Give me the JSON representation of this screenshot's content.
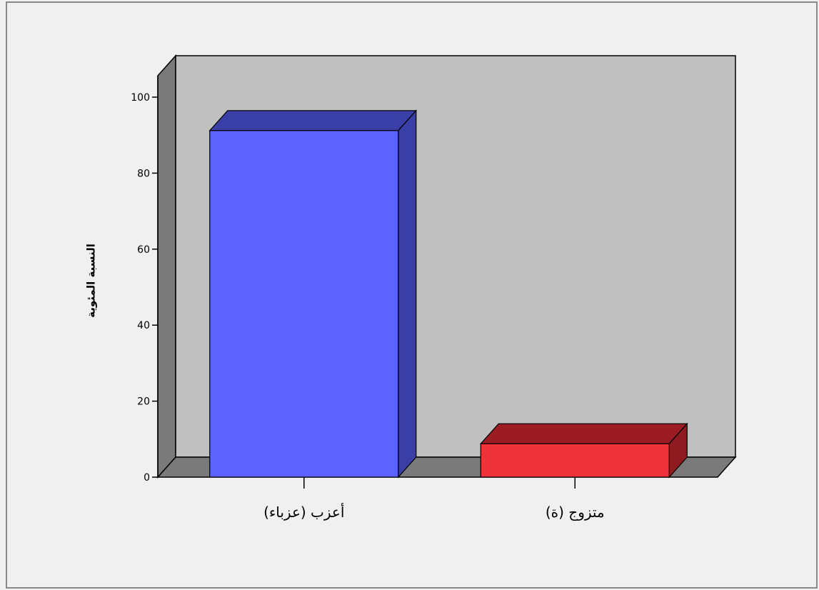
{
  "chart_data": {
    "type": "bar",
    "style": "3d",
    "categories": [
      "أعزب (عزباء)",
      "متزوج (ة)"
    ],
    "values": [
      91.2,
      8.8
    ],
    "colors": {
      "front": [
        "#5b62ff",
        "#f0323a"
      ],
      "top": [
        "#3a3fa8",
        "#9b1c22"
      ],
      "side": [
        "#3a3fa8",
        "#8f1a20"
      ]
    },
    "ylabel": "النسبة المئوية",
    "xlabel": "",
    "ylim": [
      0,
      100
    ],
    "yticks": [
      0,
      20,
      40,
      60,
      80,
      100
    ],
    "grid": false,
    "legend": "none",
    "wall_color": "#c0c0c0",
    "floor_color": "#7a7a7a"
  }
}
